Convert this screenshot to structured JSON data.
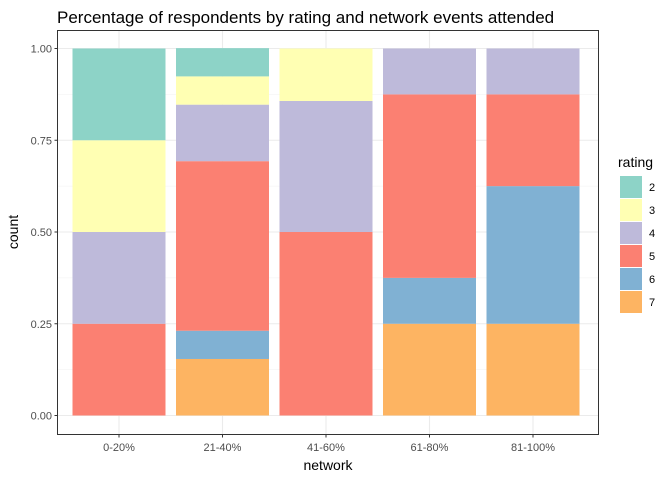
{
  "chart_data": {
    "type": "bar",
    "stacked": true,
    "title": "Percentage of respondents by rating and network events attended",
    "xlabel": "network",
    "ylabel": "count",
    "ylim": [
      0,
      1
    ],
    "yticks": [
      "0.00",
      "0.25",
      "0.50",
      "0.75",
      "1.00"
    ],
    "grid": true,
    "legend_position": "right",
    "legend_title": "rating",
    "categories": [
      "0-20%",
      "21-40%",
      "41-60%",
      "61-80%",
      "81-100%"
    ],
    "series": [
      {
        "name": "2",
        "color": "#8DD3C7",
        "values": [
          0.25,
          0.077,
          0,
          0,
          0
        ]
      },
      {
        "name": "3",
        "color": "#FFFFB3",
        "values": [
          0.25,
          0.077,
          0.143,
          0,
          0
        ]
      },
      {
        "name": "4",
        "color": "#BEBADA",
        "values": [
          0.25,
          0.154,
          0.357,
          0.125,
          0.125
        ]
      },
      {
        "name": "5",
        "color": "#FB8072",
        "values": [
          0.25,
          0.462,
          0.5,
          0.5,
          0.25
        ]
      },
      {
        "name": "6",
        "color": "#80B1D3",
        "values": [
          0,
          0.077,
          0,
          0.125,
          0.375
        ]
      },
      {
        "name": "7",
        "color": "#FDB462",
        "values": [
          0,
          0.154,
          0,
          0.25,
          0.25
        ]
      }
    ]
  }
}
